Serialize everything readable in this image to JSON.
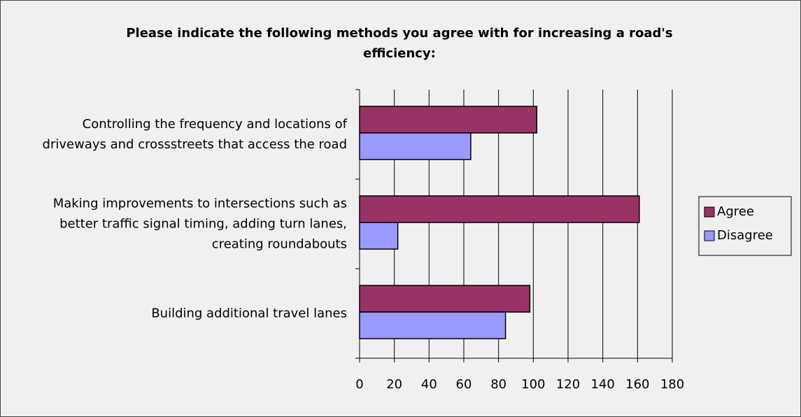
{
  "chart_data": {
    "type": "bar",
    "orientation": "horizontal",
    "title": "Please indicate the following methods you agree with for increasing a road's efficiency:",
    "categories": [
      "Controlling the frequency and locations of driveways and crossstreets that access the road",
      "Making improvements to intersections such as better traffic signal timing, adding turn lanes, creating roundabouts",
      "Building additional travel lanes"
    ],
    "series": [
      {
        "name": "Agree",
        "color": "#993366",
        "values": [
          102,
          161,
          98
        ]
      },
      {
        "name": "Disagree",
        "color": "#9999ff",
        "values": [
          64,
          22,
          84
        ]
      }
    ],
    "xlim": [
      0,
      180
    ],
    "xticks": [
      0,
      20,
      40,
      60,
      80,
      100,
      120,
      140,
      160,
      180
    ],
    "grid": true,
    "legend": "right"
  }
}
